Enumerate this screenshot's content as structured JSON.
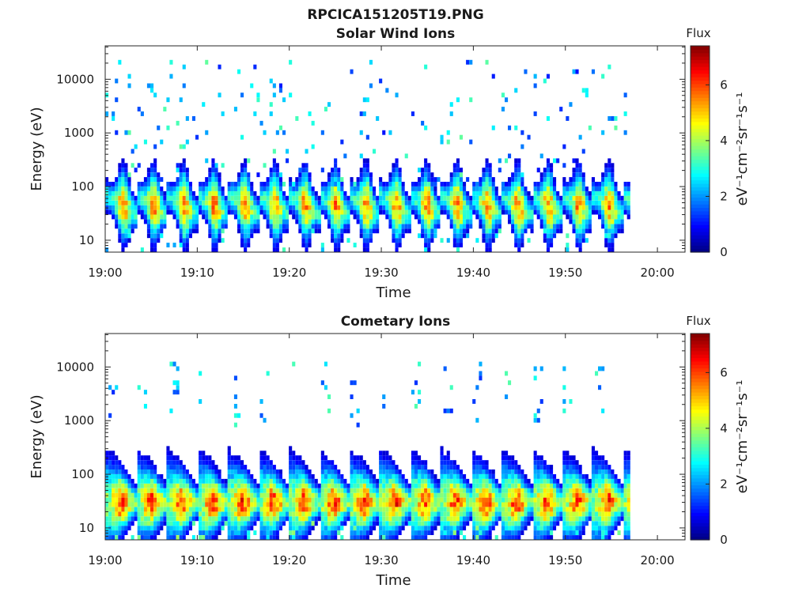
{
  "figure_title": "RPCICA151205T19.PNG",
  "colors": {
    "colormap": [
      "#00007f",
      "#0000ff",
      "#007fff",
      "#00ffff",
      "#7fff7f",
      "#ffff00",
      "#ff7f00",
      "#ff0000",
      "#7f0000"
    ],
    "axis": "#262626"
  },
  "chart_data": [
    {
      "type": "heatmap",
      "title": "Solar Wind Ions",
      "xlabel": "Time",
      "ylabel": "Energy (eV)",
      "x_ticks": [
        "19:00",
        "19:10",
        "19:20",
        "19:30",
        "19:40",
        "19:50",
        "20:00"
      ],
      "xlim": [
        "19:00",
        "20:03"
      ],
      "y_ticks": [
        "10",
        "100",
        "1000",
        "10000"
      ],
      "y_tick_values": [
        10,
        100,
        1000,
        10000
      ],
      "ylim": [
        6,
        42000
      ],
      "y_scale": "log",
      "data_end": "19:57",
      "colorbar": {
        "label": "Flux",
        "unit": "eV⁻¹cm⁻²sr⁻¹s⁻¹",
        "ticks": [
          "0",
          "2",
          "4",
          "6"
        ],
        "tick_values": [
          0,
          2,
          4,
          6
        ],
        "range": [
          0,
          7.4
        ]
      },
      "structure": {
        "burst_period_minutes": 3.3,
        "core_energy_ev": [
          18,
          45
        ],
        "peak_flux": 6.3,
        "background": "sparse blue pixels, 1-5 flux, 100-20000 eV"
      }
    },
    {
      "type": "heatmap",
      "title": "Cometary Ions",
      "xlabel": "Time",
      "ylabel": "Energy (eV)",
      "x_ticks": [
        "19:00",
        "19:10",
        "19:20",
        "19:30",
        "19:40",
        "19:50",
        "20:00"
      ],
      "xlim": [
        "19:00",
        "20:03"
      ],
      "y_ticks": [
        "10",
        "100",
        "1000",
        "10000"
      ],
      "y_tick_values": [
        10,
        100,
        1000,
        10000
      ],
      "ylim": [
        6,
        42000
      ],
      "y_scale": "log",
      "data_end": "19:57",
      "colorbar": {
        "label": "Flux",
        "unit": "eV⁻¹cm⁻²sr⁻¹s⁻¹",
        "ticks": [
          "0",
          "2",
          "4",
          "6"
        ],
        "tick_values": [
          0,
          2,
          4,
          6
        ],
        "range": [
          0,
          7.4
        ]
      },
      "structure": {
        "burst_period_minutes": 3.3,
        "core_energy_ev": [
          15,
          50
        ],
        "peak_flux": 7.0,
        "background": "vertical high-energy streaks 1000-10000 eV"
      }
    }
  ]
}
